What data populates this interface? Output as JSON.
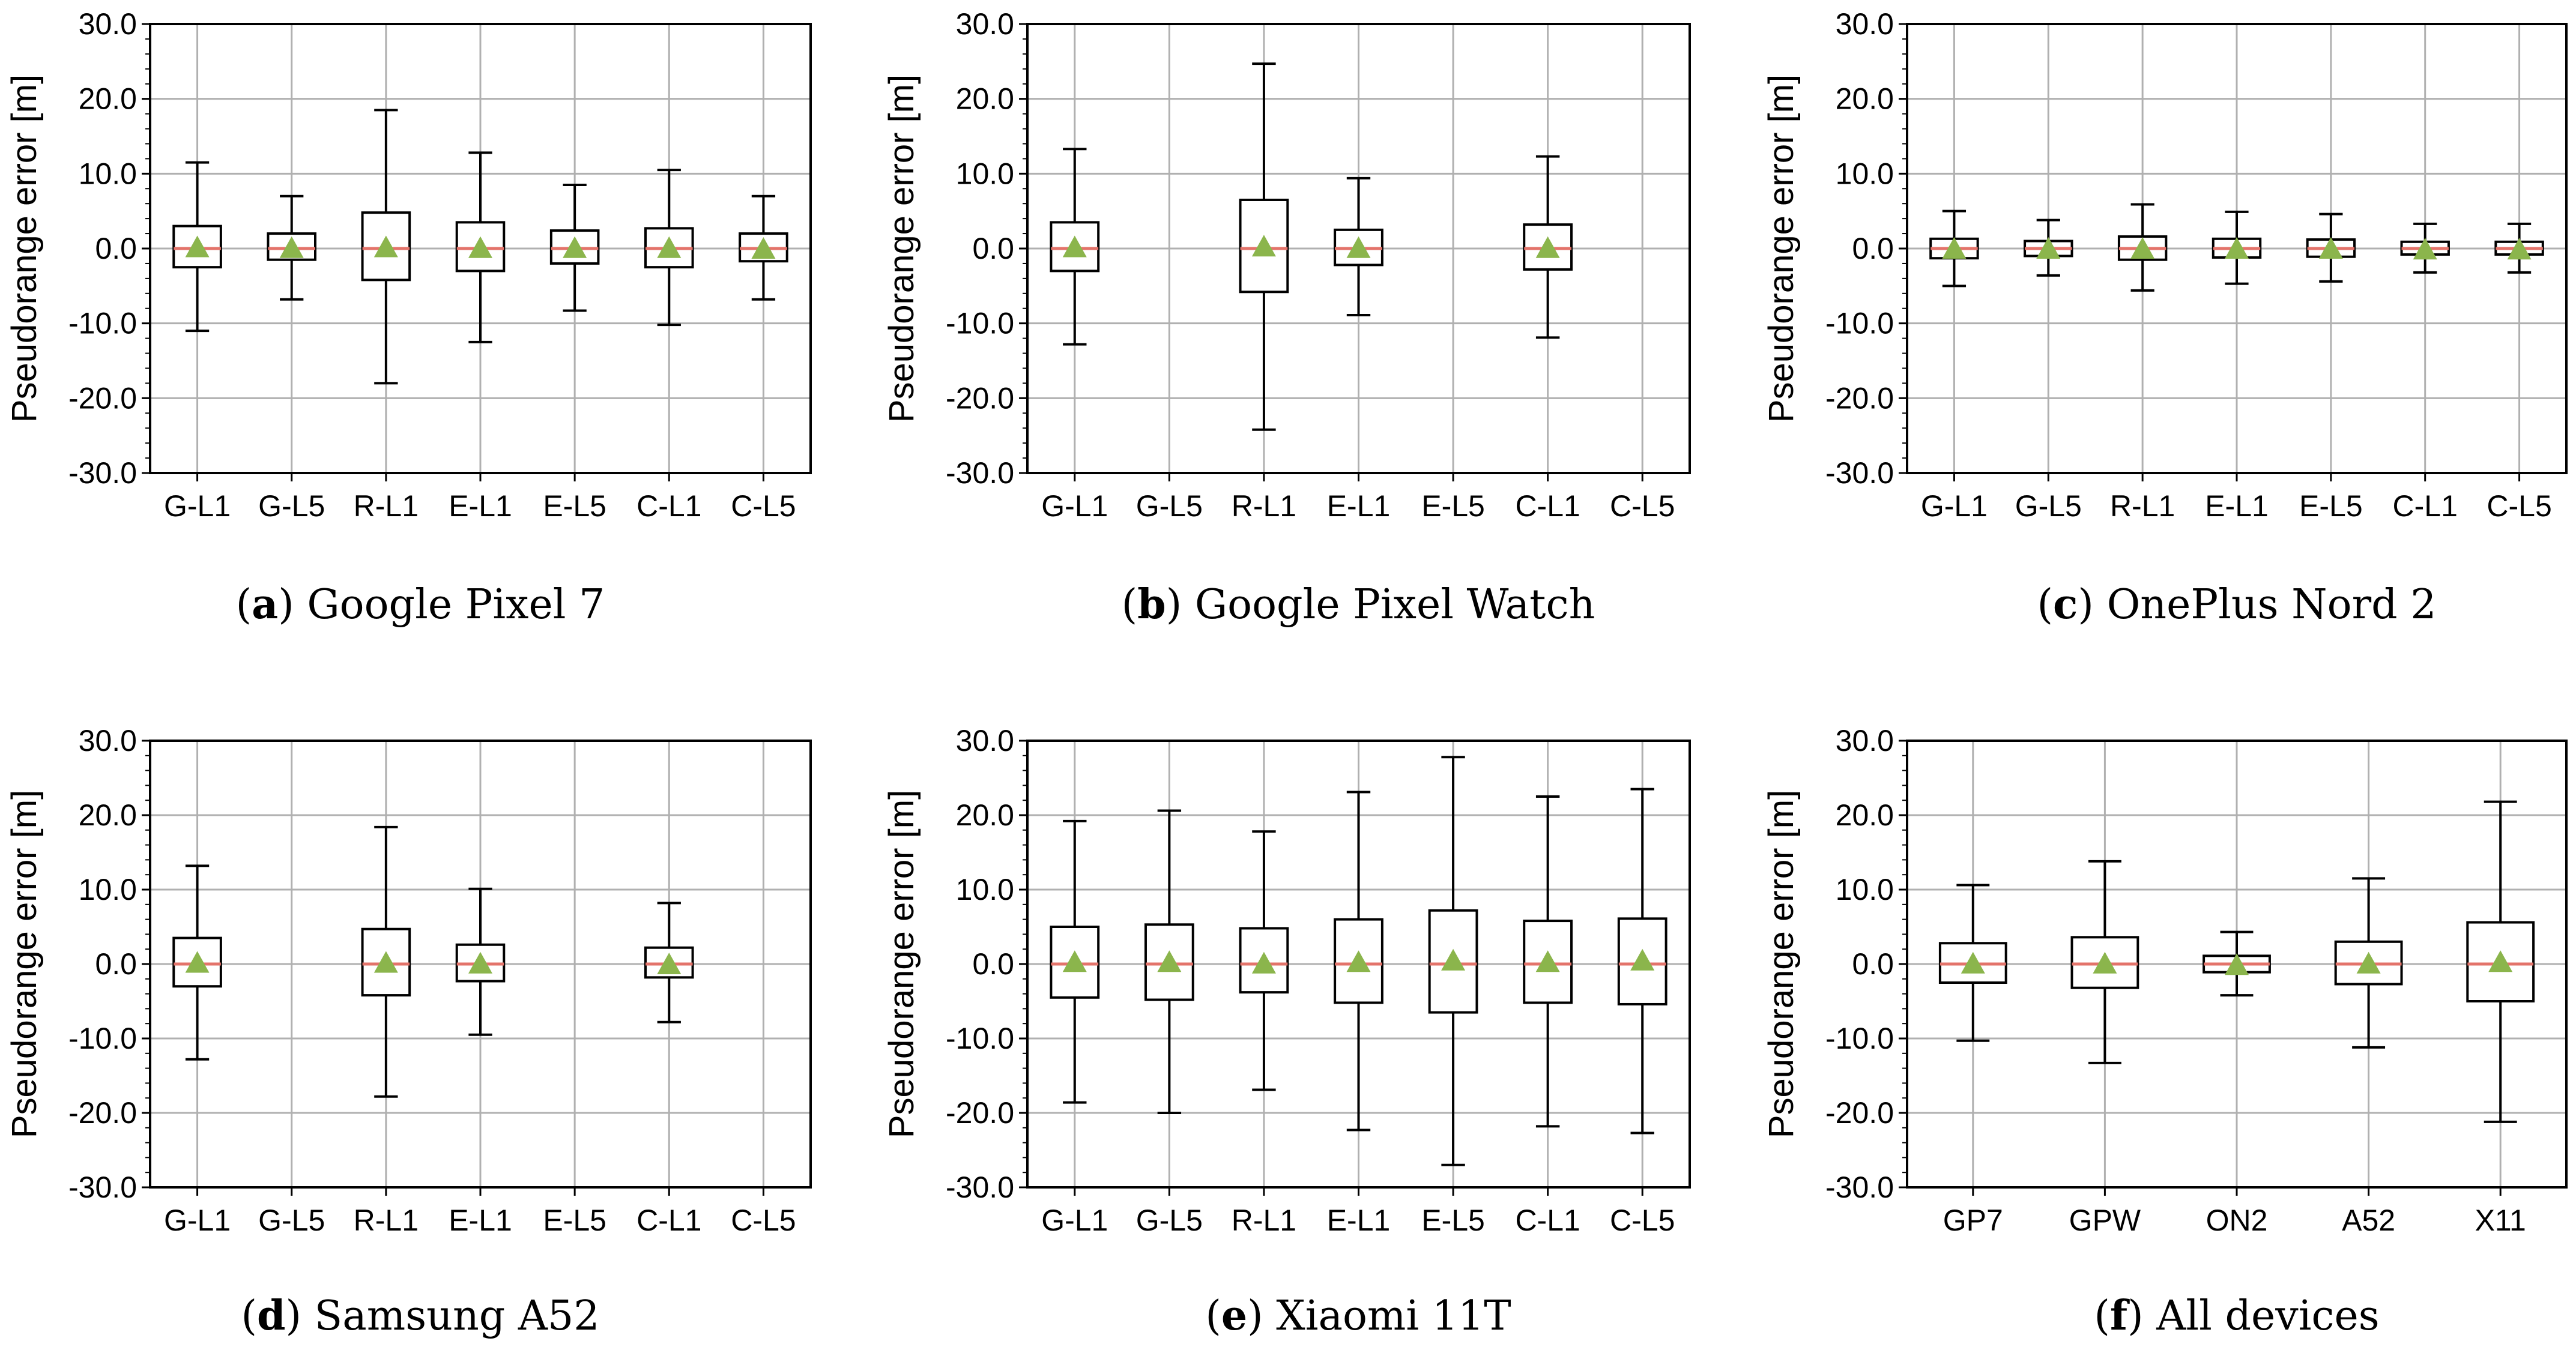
{
  "chart_data": [
    {
      "type": "box",
      "caption_letter": "a",
      "title": "Google Pixel 7",
      "xlabel": "",
      "ylabel": "Pseudorange error [m]",
      "ylim": [
        -30,
        30
      ],
      "yticks": [
        "30.0",
        "20.0",
        "10.0",
        "0.0",
        "-10.0",
        "-20.0",
        "-30.0"
      ],
      "categories": [
        "G-L1",
        "G-L5",
        "R-L1",
        "E-L1",
        "E-L5",
        "C-L1",
        "C-L5"
      ],
      "boxes": [
        {
          "whisker_low": -11.0,
          "q1": -2.5,
          "median": 0.0,
          "q3": 3.0,
          "whisker_high": 11.5,
          "mean": 0.2
        },
        {
          "whisker_low": -6.8,
          "q1": -1.5,
          "median": 0.0,
          "q3": 2.0,
          "whisker_high": 7.0,
          "mean": 0.1
        },
        {
          "whisker_low": -18.0,
          "q1": -4.2,
          "median": 0.0,
          "q3": 4.8,
          "whisker_high": 18.5,
          "mean": 0.2
        },
        {
          "whisker_low": -12.5,
          "q1": -3.0,
          "median": 0.0,
          "q3": 3.5,
          "whisker_high": 12.8,
          "mean": 0.1
        },
        {
          "whisker_low": -8.3,
          "q1": -2.0,
          "median": 0.0,
          "q3": 2.4,
          "whisker_high": 8.5,
          "mean": 0.1
        },
        {
          "whisker_low": -10.2,
          "q1": -2.5,
          "median": 0.0,
          "q3": 2.7,
          "whisker_high": 10.5,
          "mean": 0.1
        },
        {
          "whisker_low": -6.8,
          "q1": -1.7,
          "median": 0.0,
          "q3": 2.0,
          "whisker_high": 7.0,
          "mean": 0.0
        }
      ]
    },
    {
      "type": "box",
      "caption_letter": "b",
      "title": "Google Pixel Watch",
      "xlabel": "",
      "ylabel": "Pseudorange error [m]",
      "ylim": [
        -30,
        30
      ],
      "yticks": [
        "30.0",
        "20.0",
        "10.0",
        "0.0",
        "-10.0",
        "-20.0",
        "-30.0"
      ],
      "categories": [
        "G-L1",
        "G-L5",
        "R-L1",
        "E-L1",
        "E-L5",
        "C-L1",
        "C-L5"
      ],
      "boxes": [
        {
          "whisker_low": -12.8,
          "q1": -3.0,
          "median": 0.0,
          "q3": 3.5,
          "whisker_high": 13.3,
          "mean": 0.2
        },
        null,
        {
          "whisker_low": -24.2,
          "q1": -5.8,
          "median": 0.0,
          "q3": 6.5,
          "whisker_high": 24.7,
          "mean": 0.3
        },
        {
          "whisker_low": -8.9,
          "q1": -2.2,
          "median": 0.0,
          "q3": 2.5,
          "whisker_high": 9.4,
          "mean": 0.1
        },
        null,
        {
          "whisker_low": -11.9,
          "q1": -2.8,
          "median": 0.0,
          "q3": 3.2,
          "whisker_high": 12.3,
          "mean": 0.1
        },
        null
      ]
    },
    {
      "type": "box",
      "caption_letter": "c",
      "title": "OnePlus Nord 2",
      "xlabel": "",
      "ylabel": "Pseudorange error [m]",
      "ylim": [
        -30,
        30
      ],
      "yticks": [
        "30.0",
        "20.0",
        "10.0",
        "0.0",
        "-10.0",
        "-20.0",
        "-30.0"
      ],
      "categories": [
        "G-L1",
        "G-L5",
        "R-L1",
        "E-L1",
        "E-L5",
        "C-L1",
        "C-L5"
      ],
      "boxes": [
        {
          "whisker_low": -5.0,
          "q1": -1.3,
          "median": 0.0,
          "q3": 1.3,
          "whisker_high": 5.0,
          "mean": 0.0
        },
        {
          "whisker_low": -3.6,
          "q1": -1.0,
          "median": 0.0,
          "q3": 1.0,
          "whisker_high": 3.8,
          "mean": 0.0
        },
        {
          "whisker_low": -5.6,
          "q1": -1.5,
          "median": 0.0,
          "q3": 1.6,
          "whisker_high": 5.9,
          "mean": 0.0
        },
        {
          "whisker_low": -4.7,
          "q1": -1.2,
          "median": 0.0,
          "q3": 1.3,
          "whisker_high": 4.9,
          "mean": 0.0
        },
        {
          "whisker_low": -4.4,
          "q1": -1.1,
          "median": 0.0,
          "q3": 1.2,
          "whisker_high": 4.6,
          "mean": 0.0
        },
        {
          "whisker_low": -3.2,
          "q1": -0.8,
          "median": 0.0,
          "q3": 0.9,
          "whisker_high": 3.3,
          "mean": -0.1
        },
        {
          "whisker_low": -3.2,
          "q1": -0.8,
          "median": 0.0,
          "q3": 0.9,
          "whisker_high": 3.3,
          "mean": -0.1
        }
      ]
    },
    {
      "type": "box",
      "caption_letter": "d",
      "title": "Samsung A52",
      "xlabel": "",
      "ylabel": "Pseudorange error [m]",
      "ylim": [
        -30,
        30
      ],
      "yticks": [
        "30.0",
        "20.0",
        "10.0",
        "0.0",
        "-10.0",
        "-20.0",
        "-30.0"
      ],
      "categories": [
        "G-L1",
        "G-L5",
        "R-L1",
        "E-L1",
        "E-L5",
        "C-L1",
        "C-L5"
      ],
      "boxes": [
        {
          "whisker_low": -12.8,
          "q1": -3.0,
          "median": 0.0,
          "q3": 3.5,
          "whisker_high": 13.2,
          "mean": 0.2
        },
        null,
        {
          "whisker_low": -17.8,
          "q1": -4.2,
          "median": 0.0,
          "q3": 4.7,
          "whisker_high": 18.4,
          "mean": 0.2
        },
        {
          "whisker_low": -9.5,
          "q1": -2.3,
          "median": 0.0,
          "q3": 2.6,
          "whisker_high": 10.1,
          "mean": 0.1
        },
        null,
        {
          "whisker_low": -7.8,
          "q1": -1.8,
          "median": 0.0,
          "q3": 2.2,
          "whisker_high": 8.2,
          "mean": 0.0
        },
        null
      ]
    },
    {
      "type": "box",
      "caption_letter": "e",
      "title": "Xiaomi 11T",
      "xlabel": "",
      "ylabel": "Pseudorange error [m]",
      "ylim": [
        -30,
        30
      ],
      "yticks": [
        "30.0",
        "20.0",
        "10.0",
        "0.0",
        "-10.0",
        "-20.0",
        "-30.0"
      ],
      "categories": [
        "G-L1",
        "G-L5",
        "R-L1",
        "E-L1",
        "E-L5",
        "C-L1",
        "C-L5"
      ],
      "boxes": [
        {
          "whisker_low": -18.6,
          "q1": -4.5,
          "median": 0.0,
          "q3": 5.0,
          "whisker_high": 19.2,
          "mean": 0.3
        },
        {
          "whisker_low": -20.0,
          "q1": -4.8,
          "median": 0.0,
          "q3": 5.3,
          "whisker_high": 20.6,
          "mean": 0.3
        },
        {
          "whisker_low": -16.9,
          "q1": -3.8,
          "median": 0.0,
          "q3": 4.8,
          "whisker_high": 17.8,
          "mean": 0.1
        },
        {
          "whisker_low": -22.3,
          "q1": -5.2,
          "median": 0.0,
          "q3": 6.0,
          "whisker_high": 23.1,
          "mean": 0.3
        },
        {
          "whisker_low": -27.0,
          "q1": -6.5,
          "median": 0.0,
          "q3": 7.2,
          "whisker_high": 27.8,
          "mean": 0.5
        },
        {
          "whisker_low": -21.8,
          "q1": -5.2,
          "median": 0.0,
          "q3": 5.8,
          "whisker_high": 22.5,
          "mean": 0.3
        },
        {
          "whisker_low": -22.7,
          "q1": -5.4,
          "median": 0.0,
          "q3": 6.1,
          "whisker_high": 23.5,
          "mean": 0.5
        }
      ]
    },
    {
      "type": "box",
      "caption_letter": "f",
      "title": "All devices",
      "xlabel": "",
      "ylabel": "Pseudorange error [m]",
      "ylim": [
        -30,
        30
      ],
      "yticks": [
        "30.0",
        "20.0",
        "10.0",
        "0.0",
        "-10.0",
        "-20.0",
        "-30.0"
      ],
      "categories": [
        "GP7",
        "GPW",
        "ON2",
        "A52",
        "X11"
      ],
      "boxes": [
        {
          "whisker_low": -10.3,
          "q1": -2.5,
          "median": 0.0,
          "q3": 2.8,
          "whisker_high": 10.6,
          "mean": 0.1
        },
        {
          "whisker_low": -13.3,
          "q1": -3.2,
          "median": 0.0,
          "q3": 3.6,
          "whisker_high": 13.8,
          "mean": 0.1
        },
        {
          "whisker_low": -4.2,
          "q1": -1.1,
          "median": 0.0,
          "q3": 1.1,
          "whisker_high": 4.3,
          "mean": -0.1
        },
        {
          "whisker_low": -11.2,
          "q1": -2.7,
          "median": 0.0,
          "q3": 3.0,
          "whisker_high": 11.5,
          "mean": 0.1
        },
        {
          "whisker_low": -21.2,
          "q1": -5.0,
          "median": 0.0,
          "q3": 5.6,
          "whisker_high": 21.8,
          "mean": 0.3
        }
      ]
    }
  ],
  "style": {
    "box_color": "#000000",
    "median_color": "#e3736a",
    "mean_marker_color": "#8bb54c",
    "grid_color": "#b0b0b0"
  }
}
